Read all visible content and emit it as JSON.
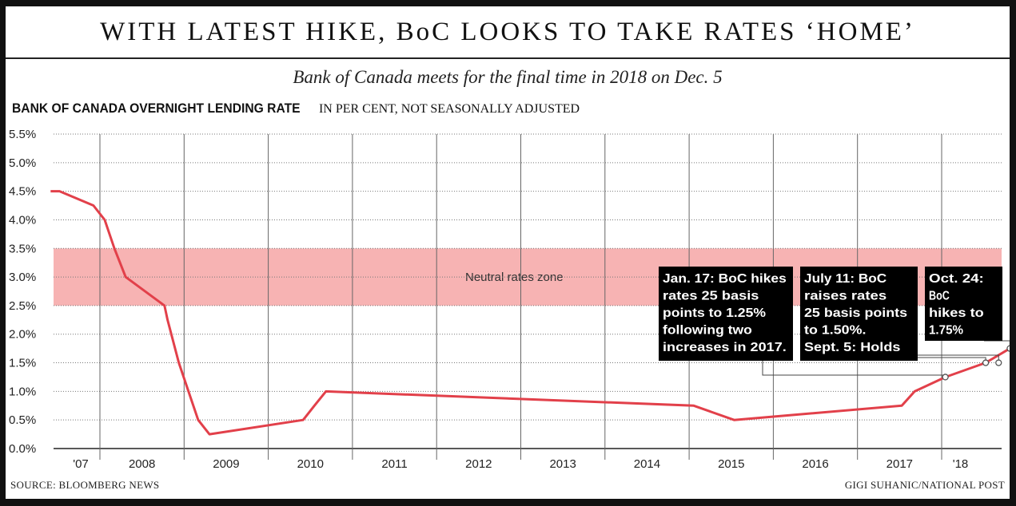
{
  "title": "WITH LATEST HIKE, BoC LOOKS TO TAKE RATES ‘HOME’",
  "subtitle": "Bank of Canada meets for the final time in 2018 on Dec. 5",
  "heading": "BANK OF CANADA OVERNIGHT LENDING RATE",
  "heading_unit": "IN PER CENT, NOT SEASONALLY ADJUSTED",
  "source": "SOURCE: BLOOMBERG NEWS",
  "credit": "GIGI SUHANIC/NATIONAL POST",
  "chart_data": {
    "type": "line",
    "title": "BANK OF CANADA OVERNIGHT LENDING RATE",
    "ylabel": "IN PER CENT, NOT SEASONALLY ADJUSTED",
    "xlabel": "",
    "ylim": [
      0,
      5.5
    ],
    "xlim": [
      "2007-06-01",
      "2018-11-30"
    ],
    "y_ticks": [
      "0.0%",
      "0.5%",
      "1.0%",
      "1.5%",
      "2.0%",
      "2.5%",
      "3.0%",
      "3.5%",
      "4.0%",
      "4.5%",
      "5.0%",
      "5.5%"
    ],
    "y_tick_values": [
      0,
      0.5,
      1.0,
      1.5,
      2.0,
      2.5,
      3.0,
      3.5,
      4.0,
      4.5,
      5.0,
      5.5
    ],
    "x_ticks": [
      "'07",
      "2008",
      "2009",
      "2010",
      "2011",
      "2012",
      "2013",
      "2014",
      "2015",
      "2016",
      "2017",
      "'18"
    ],
    "grid": true,
    "line_color": "#e2404a",
    "zone_color": "#f7b3b3",
    "series": [
      {
        "step": true,
        "points": [
          [
            "2007-06-01",
            4.5
          ],
          [
            "2007-07-10",
            4.5
          ],
          [
            "2007-12-04",
            4.25
          ],
          [
            "2008-01-22",
            4.0
          ],
          [
            "2008-03-04",
            3.5
          ],
          [
            "2008-04-22",
            3.0
          ],
          [
            "2008-10-08",
            2.5
          ],
          [
            "2008-10-21",
            2.25
          ],
          [
            "2008-12-09",
            1.5
          ],
          [
            "2009-01-20",
            1.0
          ],
          [
            "2009-03-03",
            0.5
          ],
          [
            "2009-04-21",
            0.25
          ],
          [
            "2010-06-01",
            0.5
          ],
          [
            "2010-07-20",
            0.75
          ],
          [
            "2010-09-08",
            1.0
          ],
          [
            "2015-01-21",
            0.75
          ],
          [
            "2015-07-15",
            0.5
          ],
          [
            "2017-07-12",
            0.75
          ],
          [
            "2017-09-06",
            1.0
          ],
          [
            "2018-01-17",
            1.25
          ],
          [
            "2018-07-11",
            1.5
          ],
          [
            "2018-10-24",
            1.75
          ],
          [
            "2018-11-30",
            1.75
          ]
        ]
      }
    ],
    "bands": [
      {
        "label": "Neutral rates zone",
        "from": 2.5,
        "to": 3.5
      }
    ],
    "markers": [
      {
        "x": "2018-01-17",
        "y": 1.25
      },
      {
        "x": "2018-07-11",
        "y": 1.5
      },
      {
        "x": "2018-09-05",
        "y": 1.5
      },
      {
        "x": "2018-10-24",
        "y": 1.75
      }
    ],
    "annotations": [
      {
        "lines": [
          "Jan. 17: BoC hikes",
          "rates 25 basis",
          "points to 1.25%",
          "following two",
          "increases in 2017."
        ]
      },
      {
        "lines": [
          "July 11: BoC",
          "raises rates",
          "25 basis points",
          "to 1.50%.",
          "Sept. 5: Holds"
        ]
      },
      {
        "lines": [
          "Oct. 24:",
          "BoC",
          "hikes to",
          "1.75%"
        ]
      }
    ]
  }
}
